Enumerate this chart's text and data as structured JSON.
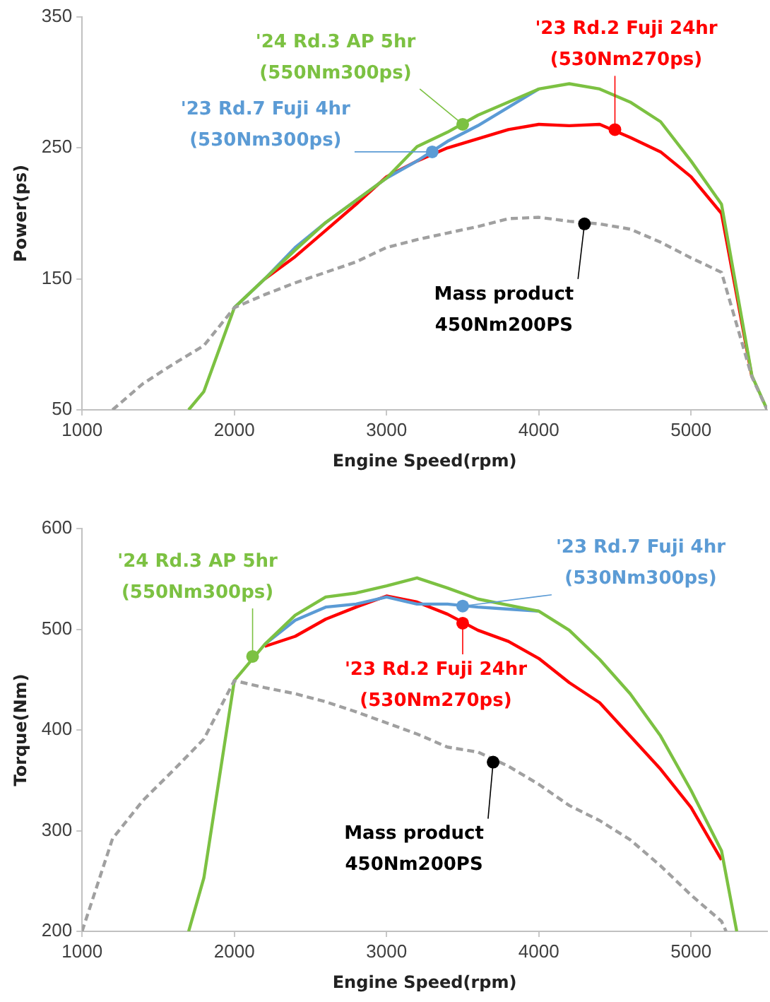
{
  "chart_data": [
    {
      "type": "line",
      "xlabel": "Engine Speed(rpm)",
      "ylabel": "Power(ps)",
      "xlim": [
        1000,
        5500
      ],
      "xticks": [
        1000,
        2000,
        3000,
        4000,
        5000
      ],
      "ylim": [
        50,
        350
      ],
      "yticks": [
        50,
        150,
        250,
        350
      ],
      "grid": false,
      "marker": "none",
      "series": [
        {
          "color": "#ff0000",
          "line_style": "solid",
          "x": [
            2200,
            2400,
            2600,
            2800,
            3000,
            3200,
            3400,
            3600,
            3800,
            4000,
            4200,
            4400,
            4600,
            4800,
            5000,
            5200,
            5400
          ],
          "values": [
            150,
            167,
            187,
            207,
            228,
            240,
            250,
            257,
            264,
            268,
            267,
            268,
            258,
            247,
            228,
            200,
            75
          ]
        },
        {
          "color": "#5b9bd5",
          "line_style": "solid",
          "x": [
            2000,
            2200,
            2400,
            2600,
            2800,
            3000,
            3200,
            3400,
            3600,
            3800,
            4000
          ],
          "values": [
            128,
            150,
            174,
            193,
            210,
            227,
            240,
            255,
            267,
            281,
            295
          ]
        },
        {
          "color": "#7cc142",
          "line_style": "solid",
          "x": [
            1700,
            1800,
            2000,
            2200,
            2400,
            2600,
            2800,
            3000,
            3200,
            3400,
            3600,
            3800,
            4000,
            4200,
            4400,
            4600,
            4800,
            5000,
            5200,
            5400,
            5500
          ],
          "values": [
            50,
            64,
            128,
            150,
            172,
            193,
            210,
            227,
            251,
            262,
            275,
            285,
            295,
            299,
            295,
            285,
            270,
            240,
            207,
            76,
            50
          ]
        },
        {
          "color": "#a0a0a0",
          "line_style": "dashed",
          "x": [
            1200,
            1400,
            1600,
            1800,
            2000,
            2200,
            2400,
            2600,
            2800,
            3000,
            3200,
            3400,
            3600,
            3800,
            4000,
            4200,
            4400,
            4600,
            4800,
            5000,
            5200,
            5400,
            5500
          ],
          "values": [
            50,
            70,
            85,
            99,
            128,
            138,
            147,
            155,
            163,
            174,
            180,
            185,
            190,
            196,
            197,
            194,
            192,
            188,
            178,
            166,
            155,
            75,
            50
          ]
        }
      ],
      "annotations": [
        {
          "text": "'23 Rd.2 Fuji 24hr\n(530Nm270ps)",
          "x": 4500,
          "y": 264
        },
        {
          "text": "'23 Rd.7 Fuji 4hr\n(530Nm300ps)",
          "x": 3300,
          "y": 247
        },
        {
          "text": "'24 Rd.3 AP 5hr\n(550Nm300ps)",
          "x": 3500,
          "y": 268
        },
        {
          "text": "Mass product\n450Nm200PS",
          "x": 4300,
          "y": 192
        }
      ]
    },
    {
      "type": "line",
      "xlabel": "Engine Speed(rpm)",
      "ylabel": "Torque(Nm)",
      "xlim": [
        1000,
        5500
      ],
      "xticks": [
        1000,
        2000,
        3000,
        4000,
        5000
      ],
      "ylim": [
        200,
        600
      ],
      "yticks": [
        200,
        300,
        400,
        500,
        600
      ],
      "grid": false,
      "marker": "none",
      "series": [
        {
          "color": "#ff0000",
          "line_style": "solid",
          "x": [
            2200,
            2400,
            2600,
            2800,
            3000,
            3200,
            3400,
            3600,
            3800,
            4000,
            4200,
            4400,
            4600,
            4800,
            5000,
            5200
          ],
          "values": [
            483,
            493,
            510,
            522,
            533,
            527,
            515,
            499,
            488,
            471,
            447,
            427,
            394,
            361,
            323,
            271
          ]
        },
        {
          "color": "#5b9bd5",
          "line_style": "solid",
          "x": [
            2200,
            2400,
            2600,
            2800,
            3000,
            3200,
            3400,
            3600,
            3800,
            4000
          ],
          "values": [
            485,
            509,
            522,
            525,
            532,
            525,
            525,
            522,
            520,
            518
          ]
        },
        {
          "color": "#7cc142",
          "line_style": "solid",
          "x": [
            1700,
            1800,
            2000,
            2200,
            2400,
            2600,
            2800,
            3000,
            3200,
            3400,
            3600,
            3800,
            4000,
            4200,
            4400,
            4600,
            4800,
            5000,
            5200,
            5300
          ],
          "values": [
            200,
            253,
            449,
            485,
            514,
            532,
            536,
            543,
            551,
            541,
            530,
            524,
            518,
            499,
            470,
            436,
            394,
            340,
            280,
            200
          ]
        },
        {
          "color": "#a0a0a0",
          "line_style": "dashed",
          "x": [
            1000,
            1200,
            1400,
            1600,
            1800,
            2000,
            2200,
            2400,
            2600,
            2800,
            3000,
            3200,
            3400,
            3600,
            3800,
            4000,
            4200,
            4400,
            4600,
            4800,
            5000,
            5200,
            5230
          ],
          "values": [
            200,
            292,
            330,
            360,
            391,
            449,
            442,
            436,
            428,
            418,
            407,
            396,
            383,
            378,
            364,
            346,
            325,
            310,
            291,
            265,
            236,
            210,
            200
          ]
        }
      ],
      "annotations": [
        {
          "text": "'23 Rd.2 Fuji 24hr\n(530Nm270ps)",
          "x": 3500,
          "y": 506
        },
        {
          "text": "'23 Rd.7 Fuji 4hr\n(530Nm300ps)",
          "x": 3500,
          "y": 523
        },
        {
          "text": "'24 Rd.3 AP 5hr\n(550Nm300ps)",
          "x": 2120,
          "y": 473
        },
        {
          "text": "Mass product\n450Nm200PS",
          "x": 3700,
          "y": 368
        }
      ]
    }
  ]
}
